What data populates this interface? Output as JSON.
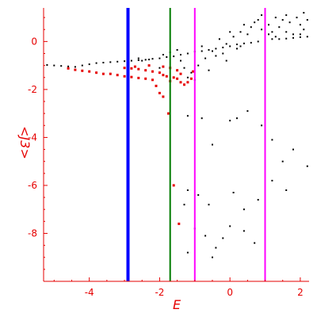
{
  "chart_data": {
    "type": "scatter",
    "xlabel": "E",
    "ylabel": "<J3>",
    "xlim": [
      -5.3,
      2.25
    ],
    "ylim": [
      -10.0,
      1.4
    ],
    "x_ticks": [
      -4,
      -2,
      0,
      2
    ],
    "x_tick_labels": [
      "-4",
      "-2",
      "0",
      "2"
    ],
    "y_ticks": [
      0,
      -2,
      -4,
      -6,
      -8
    ],
    "y_tick_labels": [
      "0",
      "-2",
      "-4",
      "-6",
      "-8"
    ],
    "grid": false,
    "vertical_lines": [
      {
        "x": -2.9,
        "color": "#0000ff"
      },
      {
        "x": -1.7,
        "color": "#007a00"
      },
      {
        "x": -1.0,
        "color": "#ff00ff"
      },
      {
        "x": 1.0,
        "color": "#ff00ff"
      }
    ],
    "series": [
      {
        "marker_color": "#000000",
        "points": [
          [
            -5.2,
            -0.98
          ],
          [
            -5.0,
            -1.0
          ],
          [
            -4.8,
            -1.02
          ],
          [
            -4.6,
            -1.04
          ],
          [
            -4.4,
            -1.06
          ],
          [
            -4.2,
            -1.0
          ],
          [
            -4.0,
            -0.95
          ],
          [
            -3.8,
            -0.9
          ],
          [
            -3.6,
            -0.88
          ],
          [
            -3.4,
            -0.86
          ],
          [
            -3.2,
            -0.84
          ],
          [
            -3.0,
            -0.82
          ],
          [
            -2.8,
            -0.8
          ],
          [
            -2.6,
            -0.78
          ],
          [
            -2.4,
            -0.76
          ],
          [
            -2.2,
            -0.72
          ],
          [
            -2.0,
            -0.7
          ],
          [
            -1.8,
            -0.65
          ],
          [
            -1.6,
            -0.62
          ],
          [
            -1.4,
            -0.55
          ],
          [
            -1.2,
            -0.5
          ],
          [
            -1.0,
            -0.42
          ],
          [
            -0.8,
            -0.4
          ],
          [
            -0.6,
            -0.35
          ],
          [
            -0.4,
            -0.3
          ],
          [
            -0.2,
            -0.25
          ],
          [
            0.0,
            -0.2
          ],
          [
            0.2,
            -0.12
          ],
          [
            0.4,
            -0.08
          ],
          [
            0.6,
            -0.05
          ],
          [
            0.8,
            0.0
          ],
          [
            1.0,
            0.05
          ],
          [
            1.2,
            0.1
          ],
          [
            1.4,
            0.1
          ],
          [
            1.6,
            0.12
          ],
          [
            1.8,
            0.15
          ],
          [
            2.0,
            0.18
          ],
          [
            2.2,
            0.2
          ],
          [
            -2.6,
            -0.7
          ],
          [
            -2.5,
            -0.8
          ],
          [
            -2.3,
            -0.75
          ],
          [
            -2.0,
            -1.1
          ],
          [
            -1.9,
            -0.55
          ],
          [
            -1.7,
            -0.45
          ],
          [
            -1.5,
            -0.35
          ],
          [
            -1.4,
            -0.8
          ],
          [
            -1.3,
            -1.1
          ],
          [
            -1.2,
            -1.5
          ],
          [
            -1.1,
            -1.3
          ],
          [
            -1.0,
            -1.6
          ],
          [
            -0.9,
            -1.0
          ],
          [
            -0.8,
            -0.2
          ],
          [
            -0.7,
            -0.7
          ],
          [
            -0.6,
            -1.2
          ],
          [
            -0.5,
            -0.4
          ],
          [
            -0.4,
            -0.6
          ],
          [
            -0.3,
            0.1
          ],
          [
            -0.2,
            -0.5
          ],
          [
            -0.1,
            -0.8
          ],
          [
            0.1,
            0.2
          ],
          [
            0.2,
            -0.3
          ],
          [
            0.3,
            0.4
          ],
          [
            0.5,
            0.3
          ],
          [
            0.6,
            0.6
          ],
          [
            0.7,
            0.8
          ],
          [
            0.8,
            0.9
          ],
          [
            0.9,
            0.5
          ],
          [
            1.0,
            1.2
          ],
          [
            1.1,
            0.7
          ],
          [
            1.2,
            0.4
          ],
          [
            1.3,
            1.0
          ],
          [
            1.4,
            0.6
          ],
          [
            1.5,
            0.9
          ],
          [
            1.6,
            1.1
          ],
          [
            1.7,
            0.8
          ],
          [
            1.8,
            0.3
          ],
          [
            1.9,
            1.0
          ],
          [
            2.0,
            0.7
          ],
          [
            2.1,
            1.2
          ],
          [
            2.2,
            0.9
          ],
          [
            0.0,
            0.4
          ],
          [
            0.4,
            0.7
          ],
          [
            0.9,
            1.1
          ],
          [
            1.3,
            0.2
          ],
          [
            1.6,
            0.4
          ],
          [
            2.0,
            0.3
          ],
          [
            2.1,
            0.5
          ],
          [
            1.1,
            0.3
          ],
          [
            0.3,
            -0.2
          ],
          [
            -0.1,
            -0.1
          ],
          [
            -1.2,
            -3.1
          ],
          [
            -0.8,
            -3.2
          ],
          [
            -0.5,
            -4.3
          ],
          [
            0.0,
            -3.3
          ],
          [
            0.2,
            -3.2
          ],
          [
            0.5,
            -2.9
          ],
          [
            0.9,
            -3.5
          ],
          [
            1.0,
            -4.8
          ],
          [
            1.2,
            -4.1
          ],
          [
            1.5,
            -5.0
          ],
          [
            1.8,
            -4.5
          ],
          [
            2.2,
            -5.2
          ],
          [
            -1.2,
            -6.2
          ],
          [
            -0.9,
            -6.4
          ],
          [
            -0.6,
            -6.8
          ],
          [
            0.1,
            -6.3
          ],
          [
            0.4,
            -7.0
          ],
          [
            0.8,
            -6.6
          ],
          [
            1.2,
            -5.8
          ],
          [
            1.6,
            -6.2
          ],
          [
            -1.3,
            -6.8
          ],
          [
            -1.0,
            -7.8
          ],
          [
            -0.7,
            -8.1
          ],
          [
            -0.4,
            -8.6
          ],
          [
            -0.2,
            -8.2
          ],
          [
            0.0,
            -7.7
          ],
          [
            0.4,
            -7.9
          ],
          [
            0.7,
            -8.4
          ],
          [
            1.0,
            -7.3
          ],
          [
            -1.2,
            -8.8
          ],
          [
            -0.5,
            -9.0
          ]
        ]
      },
      {
        "marker_color": "#e60000",
        "points": [
          [
            -4.6,
            -1.12
          ],
          [
            -4.4,
            -1.18
          ],
          [
            -4.2,
            -1.22
          ],
          [
            -4.0,
            -1.25
          ],
          [
            -3.8,
            -1.3
          ],
          [
            -3.6,
            -1.35
          ],
          [
            -3.4,
            -1.35
          ],
          [
            -3.2,
            -1.4
          ],
          [
            -3.0,
            -1.45
          ],
          [
            -2.8,
            -1.48
          ],
          [
            -2.6,
            -1.52
          ],
          [
            -2.4,
            -1.55
          ],
          [
            -2.2,
            -1.6
          ],
          [
            -2.1,
            -1.85
          ],
          [
            -2.0,
            -2.15
          ],
          [
            -1.9,
            -2.3
          ],
          [
            -3.0,
            -1.1
          ],
          [
            -2.8,
            -1.12
          ],
          [
            -2.6,
            -1.15
          ],
          [
            -2.4,
            -1.2
          ],
          [
            -2.2,
            -1.25
          ],
          [
            -2.0,
            -1.3
          ],
          [
            -1.9,
            -1.4
          ],
          [
            -1.8,
            -1.45
          ],
          [
            -1.6,
            -1.5
          ],
          [
            -1.5,
            -1.55
          ],
          [
            -1.4,
            -1.7
          ],
          [
            -1.3,
            -1.8
          ],
          [
            -1.2,
            -1.7
          ],
          [
            -1.1,
            -1.55
          ],
          [
            -1.05,
            -1.25
          ],
          [
            -2.7,
            -1.05
          ],
          [
            -2.3,
            -1.0
          ],
          [
            -1.9,
            -1.05
          ],
          [
            -1.7,
            -1.1
          ],
          [
            -1.5,
            -1.2
          ],
          [
            -1.4,
            -1.35
          ],
          [
            -1.7,
            -1.65
          ],
          [
            -1.75,
            -3.0
          ],
          [
            -1.6,
            -6.0
          ],
          [
            -1.45,
            -7.6
          ]
        ]
      }
    ]
  }
}
